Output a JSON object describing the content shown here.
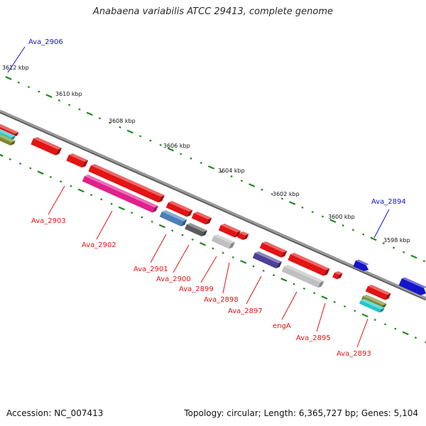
{
  "title": "Anabaena variabilis ATCC 29413, complete genome",
  "footer": {
    "accession": "Accession: NC_007413",
    "topology": "Topology: circular; Length: 6,365,727 bp; Genes: 5,104"
  },
  "scale_labels": [
    "3612 kbp",
    "3610 kbp",
    "3608 kbp",
    "3606 kbp",
    "3604 kbp",
    "3602 kbp",
    "3600 kbp",
    "3598 kbp"
  ],
  "genes": [
    {
      "label": "Ava_2906",
      "strand": "forward",
      "color": "#1414c8"
    },
    {
      "label": "Ava_2903",
      "strand": "reverse",
      "color": "#e21414"
    },
    {
      "label": "Ava_2902",
      "strand": "reverse",
      "color": "#e21414"
    },
    {
      "label": "Ava_2901",
      "strand": "reverse",
      "color": "#e21414"
    },
    {
      "label": "Ava_2900",
      "strand": "reverse",
      "color": "#e21414"
    },
    {
      "label": "Ava_2899",
      "strand": "reverse",
      "color": "#e21414"
    },
    {
      "label": "Ava_2898",
      "strand": "reverse",
      "color": "#e21414"
    },
    {
      "label": "Ava_2897",
      "strand": "reverse",
      "color": "#e21414"
    },
    {
      "label": "engA",
      "strand": "reverse",
      "color": "#e21414"
    },
    {
      "label": "Ava_2895",
      "strand": "reverse",
      "color": "#e21414"
    },
    {
      "label": "Ava_2894",
      "strand": "forward",
      "color": "#1414c8"
    },
    {
      "label": "Ava_2893",
      "strand": "reverse",
      "color": "#e21414"
    }
  ],
  "colors": {
    "backbone": "#808080",
    "tick_green": "#1f8a1f",
    "forward_gene": "#1414c8",
    "reverse_gene": "#e21414",
    "magenta": "#e0208c",
    "steel_blue": "#4a7fb8",
    "dark_gray": "#5a5a5a",
    "light_gray": "#c0c0c0",
    "slate_purple": "#4b4096",
    "olive": "#7a8a2a",
    "cyan": "#20c8c8"
  }
}
